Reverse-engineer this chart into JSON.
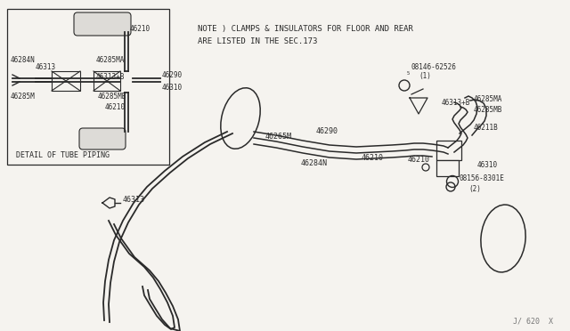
{
  "bg_color": "#f5f3ef",
  "line_color": "#2a2a2a",
  "text_color": "#2a2a2a",
  "note_text1": "NOTE ) CLAMPS & INSULATORS FOR FLOOR AND REAR",
  "note_text2": "ARE LISTED IN THE SEC.173",
  "watermark": "J/ 620  X"
}
